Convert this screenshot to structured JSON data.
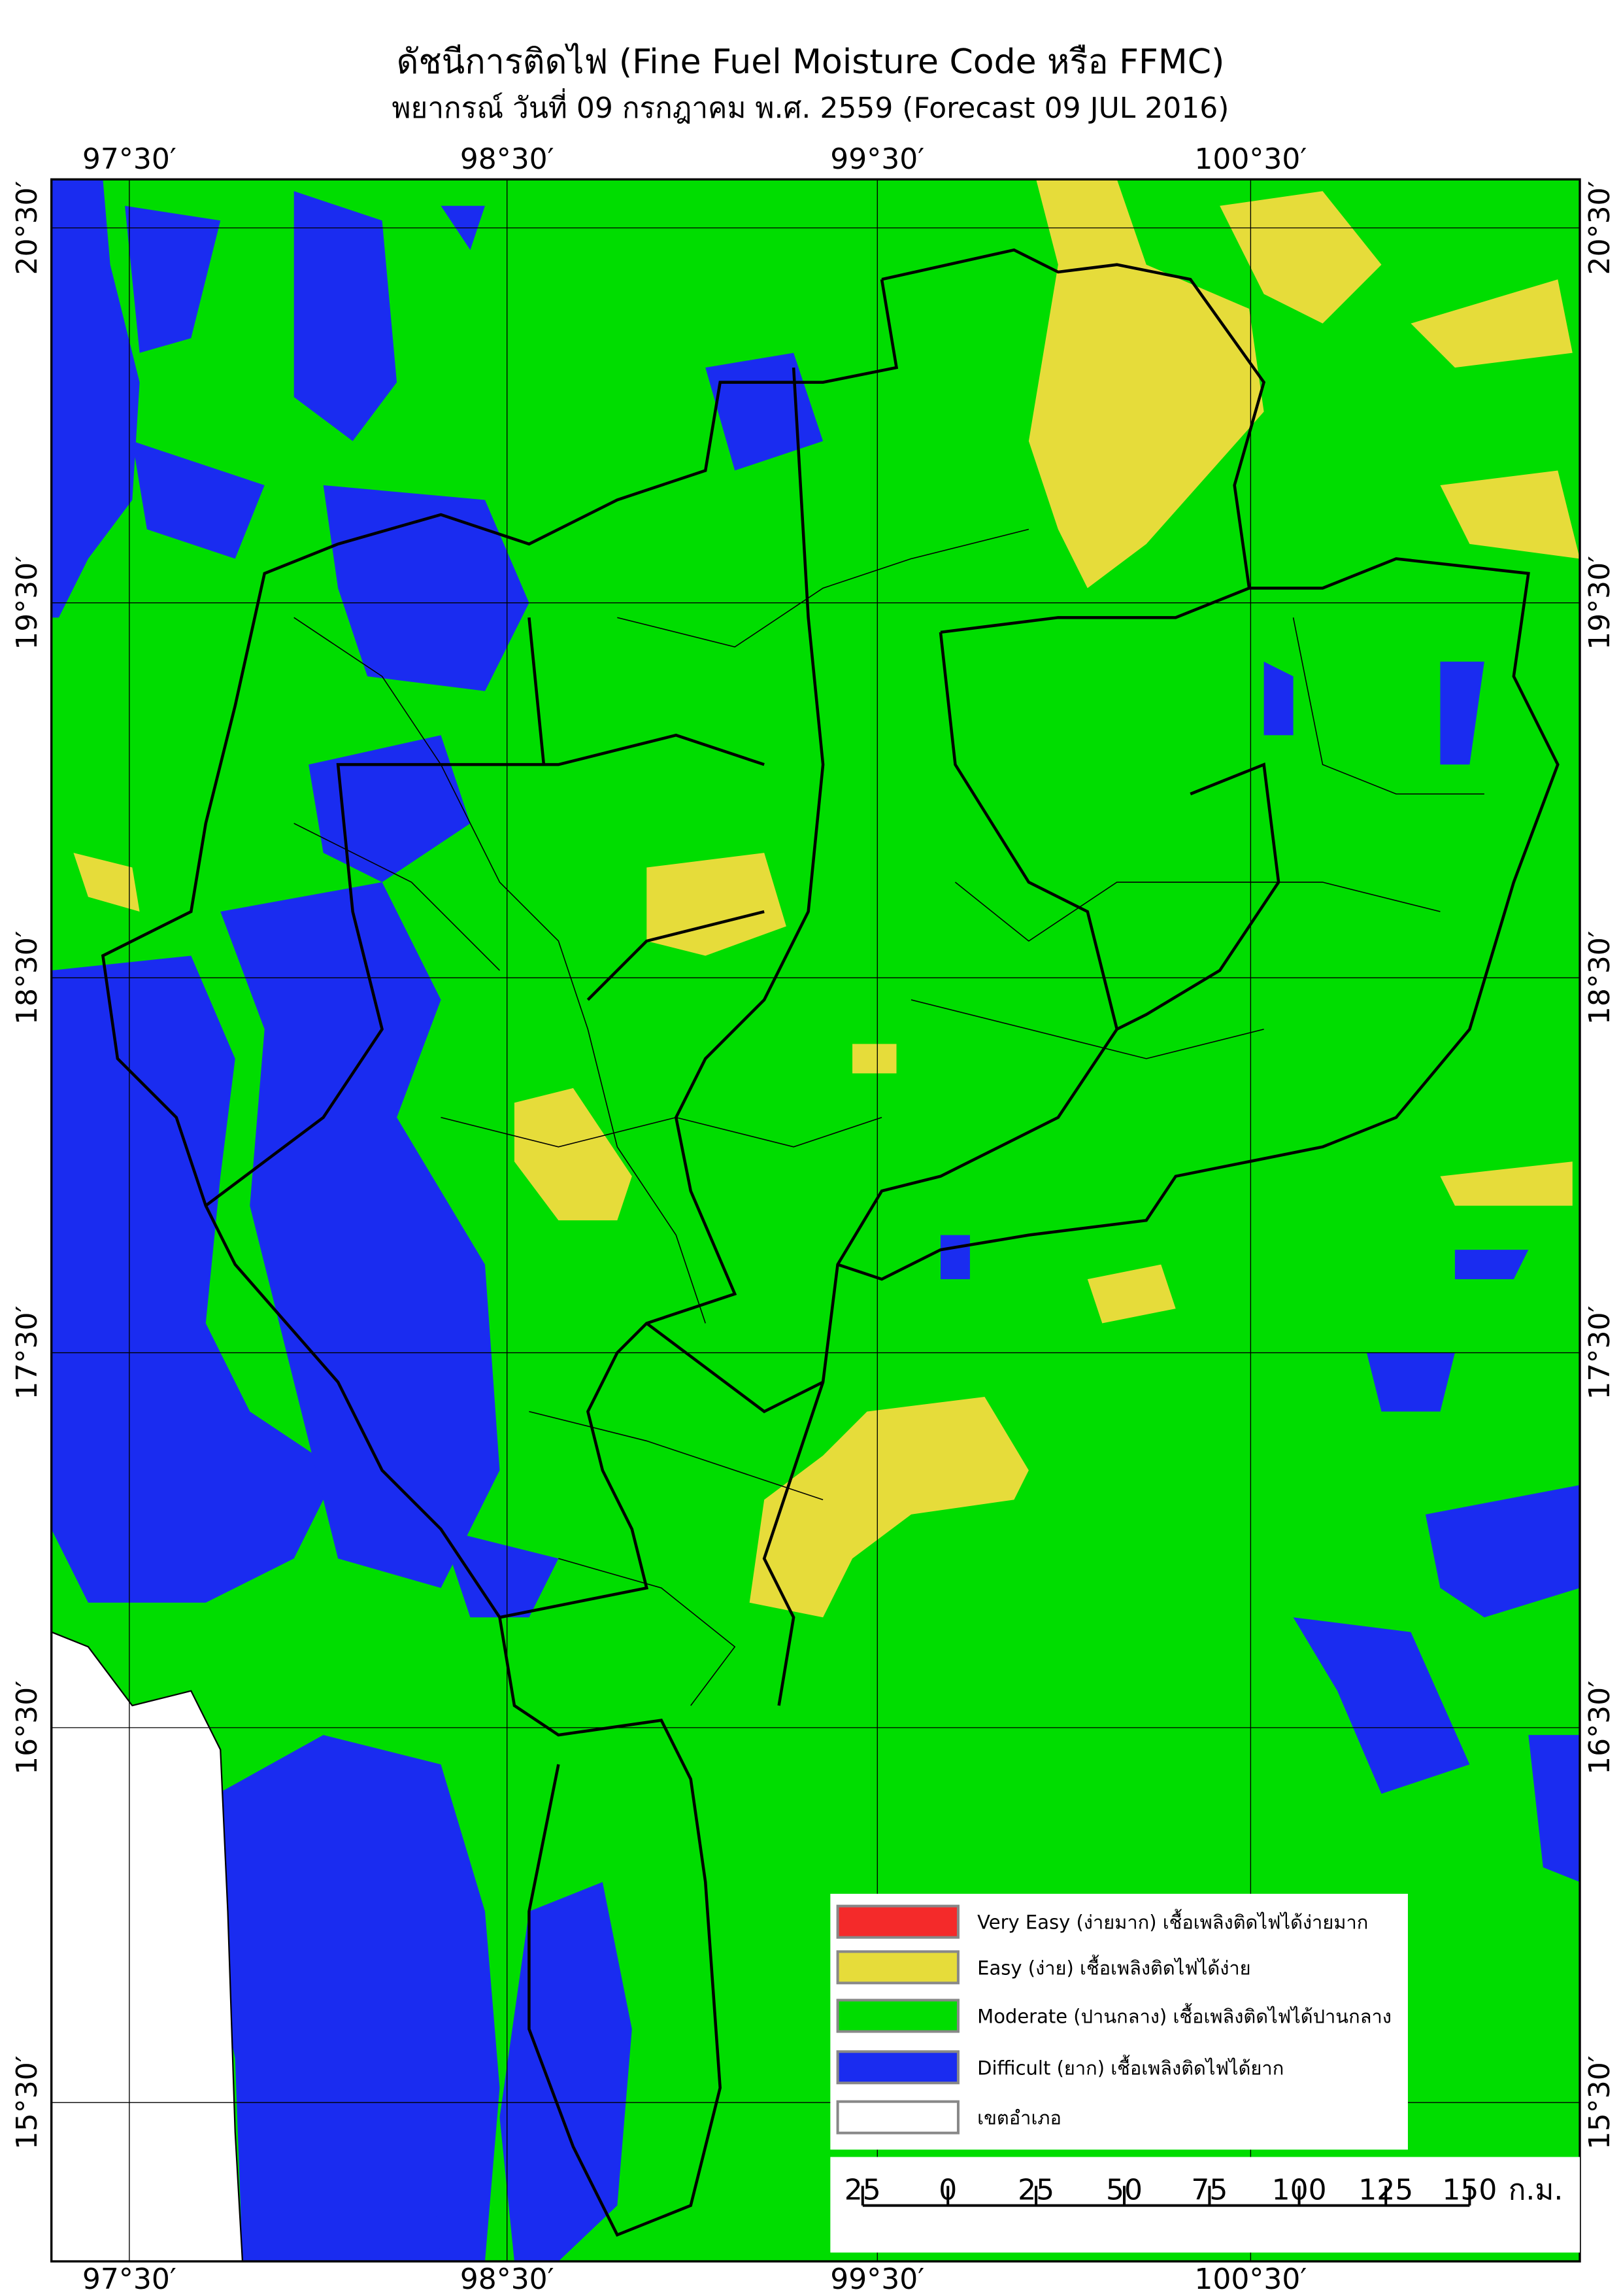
{
  "title": "ดัชนีการติดไฟ (Fine Fuel Moisture Code หรือ FFMC)",
  "subtitle": "พยากรณ์ วันที่ 09 กรกฎาคม พ.ศ. 2559 (Forecast 09 JUL 2016)",
  "longitude_labels": [
    "97°30′",
    "98°30′",
    "99°30′",
    "100°30′"
  ],
  "latitude_labels": [
    "20°30′",
    "19°30′",
    "18°30′",
    "17°30′",
    "16°30′",
    "15°30′"
  ],
  "legend": [
    {
      "label": "Very Easy (ง่ายมาก) เชื้อเพลิงติดไฟได้ง่ายมาก",
      "color": "#f42a2a"
    },
    {
      "label": "Easy (ง่าย) เชื้อเพลิงติดไฟได้ง่าย",
      "color": "#e6dc3a"
    },
    {
      "label": "Moderate (ปานกลาง) เชื้อเพลิงติดไฟได้ปานกลาง",
      "color": "#00dd00"
    },
    {
      "label": "Difficult (ยาก) เชื้อเพลิงติดไฟได้ยาก",
      "color": "#1a2cf0"
    },
    {
      "label": "เขตอำเภอ",
      "color": "#ffffff"
    }
  ],
  "scale_bar": {
    "ticks": [
      "25",
      "0",
      "25",
      "50",
      "75",
      "100",
      "125",
      "150"
    ],
    "unit": "ก.ม."
  }
}
